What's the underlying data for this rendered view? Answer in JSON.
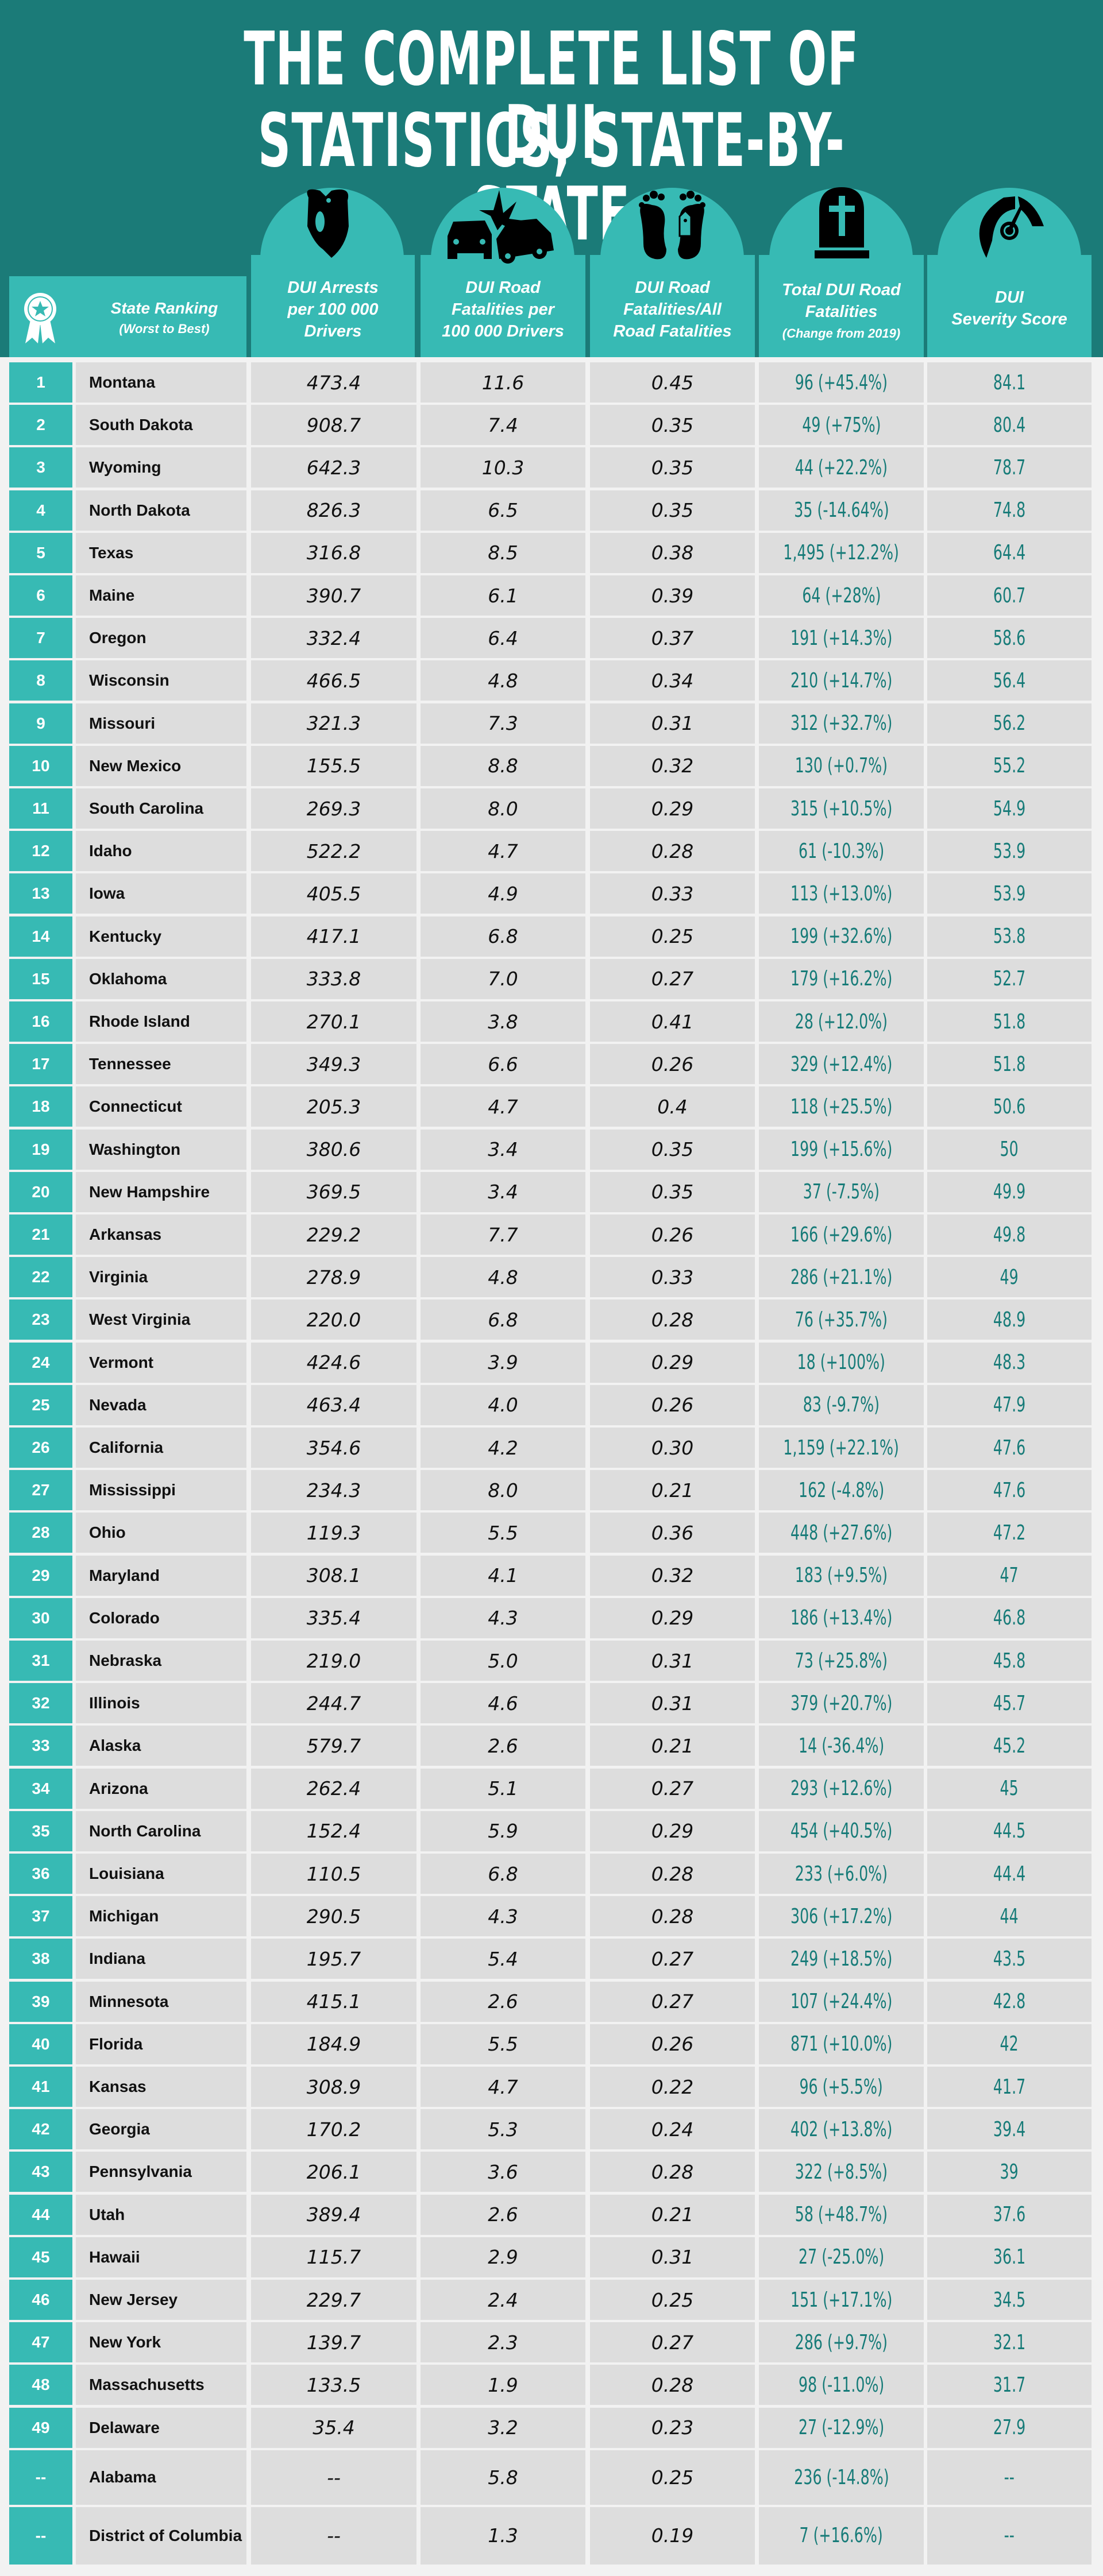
{
  "title": {
    "line1": "THE COMPLETE LIST OF DUI",
    "line2": "STATISTICS, STATE-BY-STATE"
  },
  "colors": {
    "dark_teal": "#1b7b78",
    "light_teal": "#37bab4",
    "cell_gray": "#dddddd",
    "background": "#f2f2f2",
    "value_teal": "#167b78"
  },
  "headers": {
    "rank": {
      "line1": "State Ranking",
      "line2": "(Worst to Best)",
      "icon": "award-ribbon-icon"
    },
    "arrests": {
      "line1": "DUI Arrests",
      "line2": "per 100 000",
      "line3": "Drivers",
      "icon": "handcuffs-icon"
    },
    "fatal_rate": {
      "line1": "DUI Road",
      "line2": "Fatalities per",
      "line3": "100 000 Drivers",
      "icon": "car-crash-icon"
    },
    "fatal_share": {
      "line1": "DUI Road",
      "line2": "Fatalities/All",
      "line3": "Road Fatalities",
      "icon": "toe-tag-feet-icon"
    },
    "total": {
      "line1": "Total DUI Road",
      "line2": "Fatalities",
      "line3": "(Change from 2019)",
      "icon": "tombstone-icon"
    },
    "severity": {
      "line1": "DUI",
      "line2": "Severity Score",
      "icon": "gauge-icon"
    }
  },
  "rows": [
    {
      "rank": "1",
      "state": "Montana",
      "arrests": "473.4",
      "fatal_rate": "11.6",
      "fatal_share": "0.45",
      "total": "96 (+45.4%)",
      "score": "84.1"
    },
    {
      "rank": "2",
      "state": "South Dakota",
      "arrests": "908.7",
      "fatal_rate": "7.4",
      "fatal_share": "0.35",
      "total": "49 (+75%)",
      "score": "80.4"
    },
    {
      "rank": "3",
      "state": "Wyoming",
      "arrests": "642.3",
      "fatal_rate": "10.3",
      "fatal_share": "0.35",
      "total": "44 (+22.2%)",
      "score": "78.7"
    },
    {
      "rank": "4",
      "state": "North Dakota",
      "arrests": "826.3",
      "fatal_rate": "6.5",
      "fatal_share": "0.35",
      "total": "35 (-14.64%)",
      "score": "74.8"
    },
    {
      "rank": "5",
      "state": "Texas",
      "arrests": "316.8",
      "fatal_rate": "8.5",
      "fatal_share": "0.38",
      "total": "1,495 (+12.2%)",
      "score": "64.4"
    },
    {
      "rank": "6",
      "state": "Maine",
      "arrests": "390.7",
      "fatal_rate": "6.1",
      "fatal_share": "0.39",
      "total": "64 (+28%)",
      "score": "60.7"
    },
    {
      "rank": "7",
      "state": "Oregon",
      "arrests": "332.4",
      "fatal_rate": "6.4",
      "fatal_share": "0.37",
      "total": "191 (+14.3%)",
      "score": "58.6"
    },
    {
      "rank": "8",
      "state": "Wisconsin",
      "arrests": "466.5",
      "fatal_rate": "4.8",
      "fatal_share": "0.34",
      "total": "210 (+14.7%)",
      "score": "56.4"
    },
    {
      "rank": "9",
      "state": "Missouri",
      "arrests": "321.3",
      "fatal_rate": "7.3",
      "fatal_share": "0.31",
      "total": "312 (+32.7%)",
      "score": "56.2"
    },
    {
      "rank": "10",
      "state": "New Mexico",
      "arrests": "155.5",
      "fatal_rate": "8.8",
      "fatal_share": "0.32",
      "total": "130 (+0.7%)",
      "score": "55.2"
    },
    {
      "rank": "11",
      "state": "South Carolina",
      "arrests": "269.3",
      "fatal_rate": "8.0",
      "fatal_share": "0.29",
      "total": "315 (+10.5%)",
      "score": "54.9"
    },
    {
      "rank": "12",
      "state": "Idaho",
      "arrests": "522.2",
      "fatal_rate": "4.7",
      "fatal_share": "0.28",
      "total": "61 (-10.3%)",
      "score": "53.9"
    },
    {
      "rank": "13",
      "state": "Iowa",
      "arrests": "405.5",
      "fatal_rate": "4.9",
      "fatal_share": "0.33",
      "total": "113 (+13.0%)",
      "score": "53.9"
    },
    {
      "rank": "14",
      "state": "Kentucky",
      "arrests": "417.1",
      "fatal_rate": "6.8",
      "fatal_share": "0.25",
      "total": "199 (+32.6%)",
      "score": "53.8"
    },
    {
      "rank": "15",
      "state": "Oklahoma",
      "arrests": "333.8",
      "fatal_rate": "7.0",
      "fatal_share": "0.27",
      "total": "179 (+16.2%)",
      "score": "52.7"
    },
    {
      "rank": "16",
      "state": "Rhode Island",
      "arrests": "270.1",
      "fatal_rate": "3.8",
      "fatal_share": "0.41",
      "total": "28 (+12.0%)",
      "score": "51.8"
    },
    {
      "rank": "17",
      "state": "Tennessee",
      "arrests": "349.3",
      "fatal_rate": "6.6",
      "fatal_share": "0.26",
      "total": "329 (+12.4%)",
      "score": "51.8"
    },
    {
      "rank": "18",
      "state": "Connecticut",
      "arrests": "205.3",
      "fatal_rate": "4.7",
      "fatal_share": "0.4",
      "total": "118 (+25.5%)",
      "score": "50.6"
    },
    {
      "rank": "19",
      "state": "Washington",
      "arrests": "380.6",
      "fatal_rate": "3.4",
      "fatal_share": "0.35",
      "total": "199 (+15.6%)",
      "score": "50"
    },
    {
      "rank": "20",
      "state": "New Hampshire",
      "arrests": "369.5",
      "fatal_rate": "3.4",
      "fatal_share": "0.35",
      "total": "37 (-7.5%)",
      "score": "49.9"
    },
    {
      "rank": "21",
      "state": "Arkansas",
      "arrests": "229.2",
      "fatal_rate": "7.7",
      "fatal_share": "0.26",
      "total": "166 (+29.6%)",
      "score": "49.8"
    },
    {
      "rank": "22",
      "state": "Virginia",
      "arrests": "278.9",
      "fatal_rate": "4.8",
      "fatal_share": "0.33",
      "total": "286 (+21.1%)",
      "score": "49"
    },
    {
      "rank": "23",
      "state": "West Virginia",
      "arrests": "220.0",
      "fatal_rate": "6.8",
      "fatal_share": "0.28",
      "total": "76 (+35.7%)",
      "score": "48.9"
    },
    {
      "rank": "24",
      "state": "Vermont",
      "arrests": "424.6",
      "fatal_rate": "3.9",
      "fatal_share": "0.29",
      "total": "18 (+100%)",
      "score": "48.3"
    },
    {
      "rank": "25",
      "state": "Nevada",
      "arrests": "463.4",
      "fatal_rate": "4.0",
      "fatal_share": "0.26",
      "total": "83 (-9.7%)",
      "score": "47.9"
    },
    {
      "rank": "26",
      "state": "California",
      "arrests": "354.6",
      "fatal_rate": "4.2",
      "fatal_share": "0.30",
      "total": "1,159 (+22.1%)",
      "score": "47.6"
    },
    {
      "rank": "27",
      "state": "Mississippi",
      "arrests": "234.3",
      "fatal_rate": "8.0",
      "fatal_share": "0.21",
      "total": "162 (-4.8%)",
      "score": "47.6"
    },
    {
      "rank": "28",
      "state": "Ohio",
      "arrests": "119.3",
      "fatal_rate": "5.5",
      "fatal_share": "0.36",
      "total": "448 (+27.6%)",
      "score": "47.2"
    },
    {
      "rank": "29",
      "state": "Maryland",
      "arrests": "308.1",
      "fatal_rate": "4.1",
      "fatal_share": "0.32",
      "total": "183 (+9.5%)",
      "score": "47"
    },
    {
      "rank": "30",
      "state": "Colorado",
      "arrests": "335.4",
      "fatal_rate": "4.3",
      "fatal_share": "0.29",
      "total": "186 (+13.4%)",
      "score": "46.8"
    },
    {
      "rank": "31",
      "state": "Nebraska",
      "arrests": "219.0",
      "fatal_rate": "5.0",
      "fatal_share": "0.31",
      "total": "73 (+25.8%)",
      "score": "45.8"
    },
    {
      "rank": "32",
      "state": "Illinois",
      "arrests": "244.7",
      "fatal_rate": "4.6",
      "fatal_share": "0.31",
      "total": "379 (+20.7%)",
      "score": "45.7"
    },
    {
      "rank": "33",
      "state": "Alaska",
      "arrests": "579.7",
      "fatal_rate": "2.6",
      "fatal_share": "0.21",
      "total": "14 (-36.4%)",
      "score": "45.2"
    },
    {
      "rank": "34",
      "state": "Arizona",
      "arrests": "262.4",
      "fatal_rate": "5.1",
      "fatal_share": "0.27",
      "total": "293 (+12.6%)",
      "score": "45"
    },
    {
      "rank": "35",
      "state": "North Carolina",
      "arrests": "152.4",
      "fatal_rate": "5.9",
      "fatal_share": "0.29",
      "total": "454 (+40.5%)",
      "score": "44.5"
    },
    {
      "rank": "36",
      "state": "Louisiana",
      "arrests": "110.5",
      "fatal_rate": "6.8",
      "fatal_share": "0.28",
      "total": "233 (+6.0%)",
      "score": "44.4"
    },
    {
      "rank": "37",
      "state": "Michigan",
      "arrests": "290.5",
      "fatal_rate": "4.3",
      "fatal_share": "0.28",
      "total": "306 (+17.2%)",
      "score": "44"
    },
    {
      "rank": "38",
      "state": "Indiana",
      "arrests": "195.7",
      "fatal_rate": "5.4",
      "fatal_share": "0.27",
      "total": "249 (+18.5%)",
      "score": "43.5"
    },
    {
      "rank": "39",
      "state": "Minnesota",
      "arrests": "415.1",
      "fatal_rate": "2.6",
      "fatal_share": "0.27",
      "total": "107 (+24.4%)",
      "score": "42.8"
    },
    {
      "rank": "40",
      "state": "Florida",
      "arrests": "184.9",
      "fatal_rate": "5.5",
      "fatal_share": "0.26",
      "total": "871 (+10.0%)",
      "score": "42"
    },
    {
      "rank": "41",
      "state": "Kansas",
      "arrests": "308.9",
      "fatal_rate": "4.7",
      "fatal_share": "0.22",
      "total": "96 (+5.5%)",
      "score": "41.7"
    },
    {
      "rank": "42",
      "state": "Georgia",
      "arrests": "170.2",
      "fatal_rate": "5.3",
      "fatal_share": "0.24",
      "total": "402 (+13.8%)",
      "score": "39.4"
    },
    {
      "rank": "43",
      "state": "Pennsylvania",
      "arrests": "206.1",
      "fatal_rate": "3.6",
      "fatal_share": "0.28",
      "total": "322 (+8.5%)",
      "score": "39"
    },
    {
      "rank": "44",
      "state": "Utah",
      "arrests": "389.4",
      "fatal_rate": "2.6",
      "fatal_share": "0.21",
      "total": "58 (+48.7%)",
      "score": "37.6"
    },
    {
      "rank": "45",
      "state": "Hawaii",
      "arrests": "115.7",
      "fatal_rate": "2.9",
      "fatal_share": "0.31",
      "total": "27 (-25.0%)",
      "score": "36.1"
    },
    {
      "rank": "46",
      "state": "New Jersey",
      "arrests": "229.7",
      "fatal_rate": "2.4",
      "fatal_share": "0.25",
      "total": "151 (+17.1%)",
      "score": "34.5"
    },
    {
      "rank": "47",
      "state": "New York",
      "arrests": "139.7",
      "fatal_rate": "2.3",
      "fatal_share": "0.27",
      "total": "286 (+9.7%)",
      "score": "32.1"
    },
    {
      "rank": "48",
      "state": "Massachusetts",
      "arrests": "133.5",
      "fatal_rate": "1.9",
      "fatal_share": "0.28",
      "total": "98 (-11.0%)",
      "score": "31.7"
    },
    {
      "rank": "49",
      "state": "Delaware",
      "arrests": "35.4",
      "fatal_rate": "3.2",
      "fatal_share": "0.23",
      "total": "27 (-12.9%)",
      "score": "27.9"
    },
    {
      "rank": "--",
      "state": "Alabama",
      "arrests": "--",
      "fatal_rate": "5.8",
      "fatal_share": "0.25",
      "total": "236 (-14.8%)",
      "score": "--"
    },
    {
      "rank": "--",
      "state": "District of Columbia",
      "arrests": "--",
      "fatal_rate": "1.3",
      "fatal_share": "0.19",
      "total": "7 (+16.6%)",
      "score": "--"
    }
  ],
  "chart_data": {
    "type": "table",
    "title": "THE COMPLETE LIST OF DUI STATISTICS, STATE-BY-STATE",
    "columns": [
      "State Ranking (Worst to Best)",
      "State",
      "DUI Arrests per 100 000 Drivers",
      "DUI Road Fatalities per 100 000 Drivers",
      "DUI Road Fatalities/All Road Fatalities",
      "Total DUI Road Fatalities (Change from 2019)",
      "DUI Severity Score"
    ]
  }
}
